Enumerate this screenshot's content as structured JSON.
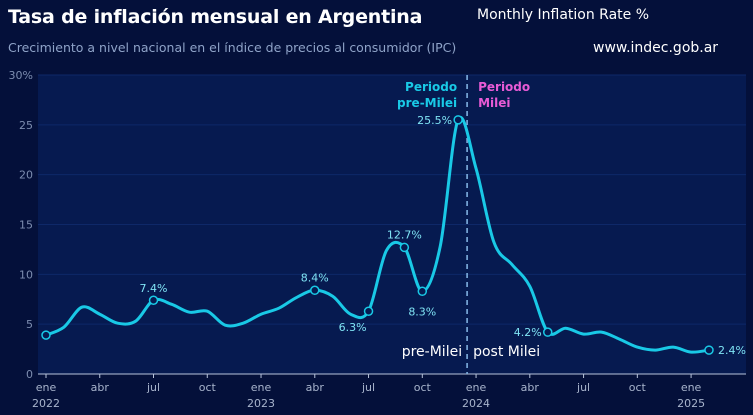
{
  "header": {
    "title": "Tasa de inflación mensual en Argentina",
    "subtitle": "Crecimiento a nivel nacional en el índice de precios al consumidor (IPC)",
    "note": "Monthly Inflation Rate  %",
    "source": "www.indec.gob.ar"
  },
  "colors": {
    "background": "#04103a",
    "plot_background": "#061a50",
    "line": "#19c9e6",
    "pre_label": "#19c9e6",
    "post_label": "#e85bd6",
    "divider": "#7fb0e0"
  },
  "chart_data": {
    "type": "line",
    "ylim": [
      0,
      30
    ],
    "yticks": [
      0,
      5,
      10,
      15,
      20,
      25,
      30
    ],
    "ytick_labels": [
      "0",
      "5",
      "10",
      "15",
      "20",
      "25",
      "30%"
    ],
    "xtick_labels": [
      {
        "month": "ene",
        "year": "2022",
        "index": 0
      },
      {
        "month": "abr",
        "year": "",
        "index": 3
      },
      {
        "month": "jul",
        "year": "",
        "index": 6
      },
      {
        "month": "oct",
        "year": "",
        "index": 9
      },
      {
        "month": "ene",
        "year": "2023",
        "index": 12
      },
      {
        "month": "abr",
        "year": "",
        "index": 15
      },
      {
        "month": "jul",
        "year": "",
        "index": 18
      },
      {
        "month": "oct",
        "year": "",
        "index": 21
      },
      {
        "month": "ene",
        "year": "2024",
        "index": 24
      },
      {
        "month": "abr",
        "year": "",
        "index": 27
      },
      {
        "month": "jul",
        "year": "",
        "index": 30
      },
      {
        "month": "oct",
        "year": "",
        "index": 33
      },
      {
        "month": "ene",
        "year": "2025",
        "index": 36
      }
    ],
    "series": [
      {
        "values": [
          3.9,
          4.7,
          6.7,
          6.0,
          5.1,
          5.3,
          7.4,
          7.0,
          6.2,
          6.3,
          4.9,
          5.1,
          6.0,
          6.6,
          7.7,
          8.4,
          7.8,
          6.0,
          6.3,
          12.4,
          12.7,
          8.3,
          12.8,
          25.5,
          20.6,
          13.2,
          11.0,
          8.8,
          4.2,
          4.6,
          4.0,
          4.2,
          3.5,
          2.7,
          2.4,
          2.7,
          2.2,
          2.4
        ]
      }
    ],
    "annotations": [
      {
        "index": 0,
        "label": ""
      },
      {
        "index": 6,
        "label": "7.4%"
      },
      {
        "index": 15,
        "label": "8.4%"
      },
      {
        "index": 18,
        "label": "6.3%"
      },
      {
        "index": 20,
        "label": "12.7%"
      },
      {
        "index": 21,
        "label": "8.3%"
      },
      {
        "index": 23,
        "label": "25.5%"
      },
      {
        "index": 28,
        "label": "4.2%"
      },
      {
        "index": 37,
        "label": "2.4%"
      }
    ],
    "divider_index": 23.5,
    "period_labels": {
      "pre_line1": "Periodo",
      "pre_line2": "pre-Milei",
      "post_line1": "Periodo",
      "post_line2": "Milei"
    },
    "bottom_labels": {
      "pre": "pre-Milei",
      "post": "post Milei"
    }
  }
}
